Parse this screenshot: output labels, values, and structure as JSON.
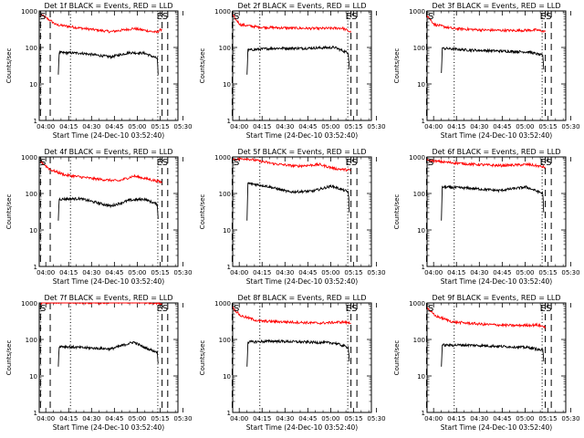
{
  "chart_data": [
    {
      "type": "line",
      "title": "Det 1f BLACK = Events, RED = LLD",
      "xlabel": "Start Time (24-Dec-10 03:52:40)",
      "ylabel": "Counts/sec",
      "yscale": "log",
      "ylim": [
        1,
        1000
      ],
      "y_ticks": [
        "1",
        "10",
        "100",
        "1000"
      ],
      "x_ticks": [
        "04:00",
        "04:15",
        "04:30",
        "04:45",
        "05:00",
        "05:15",
        "05:30"
      ],
      "xlim_minutes": [
        3.0,
        94.0
      ],
      "markers": [
        {
          "label": "E",
          "minute": 83.6
        },
        {
          "label": "S",
          "minute": 87.3
        }
      ],
      "dashed_lines": [
        3.8,
        10.2,
        83.6,
        87.3
      ],
      "dotted_lines": [
        23.5,
        80.8
      ],
      "series": [
        {
          "color": "#ff0000",
          "values": [
            {
              "t": 4.0,
              "v": 800
            },
            {
              "t": 10.2,
              "v": 550
            },
            {
              "t": 14,
              "v": 420
            },
            {
              "t": 30,
              "v": 340
            },
            {
              "t": 50,
              "v": 270
            },
            {
              "t": 65,
              "v": 330
            },
            {
              "t": 80,
              "v": 260
            },
            {
              "t": 83.6,
              "v": 320
            }
          ]
        },
        {
          "color": "#000000",
          "values": [
            {
              "t": 15.5,
              "v": 18
            },
            {
              "t": 16,
              "v": 72
            },
            {
              "t": 30,
              "v": 70
            },
            {
              "t": 50,
              "v": 55
            },
            {
              "t": 62,
              "v": 72
            },
            {
              "t": 72,
              "v": 70
            },
            {
              "t": 80.5,
              "v": 50
            },
            {
              "t": 81,
              "v": 18
            }
          ]
        }
      ]
    },
    {
      "type": "line",
      "title": "Det 2f BLACK = Events, RED = LLD",
      "xlabel": "Start Time (24-Dec-10 03:52:40)",
      "ylabel": "Counts/sec",
      "yscale": "log",
      "ylim": [
        1,
        1000
      ],
      "y_ticks": [
        "1",
        "10",
        "100",
        "1000"
      ],
      "x_ticks": [
        "04:00",
        "04:15",
        "04:30",
        "04:45",
        "05:00",
        "05:15",
        "05:30"
      ],
      "xlim_minutes": [
        3.0,
        94.0
      ],
      "markers": [
        {
          "label": "E",
          "minute": 80.6
        },
        {
          "label": "S",
          "minute": 84.5
        }
      ],
      "dashed_lines": [
        2.7,
        80.6,
        84.5
      ],
      "dotted_lines": [
        20.8,
        78.5
      ],
      "series": [
        {
          "color": "#ff0000",
          "values": [
            {
              "t": 3,
              "v": 750
            },
            {
              "t": 8,
              "v": 420
            },
            {
              "t": 20,
              "v": 360
            },
            {
              "t": 40,
              "v": 340
            },
            {
              "t": 60,
              "v": 330
            },
            {
              "t": 75,
              "v": 340
            },
            {
              "t": 80.6,
              "v": 260
            }
          ]
        },
        {
          "color": "#000000",
          "values": [
            {
              "t": 12.4,
              "v": 18
            },
            {
              "t": 13,
              "v": 85
            },
            {
              "t": 30,
              "v": 95
            },
            {
              "t": 50,
              "v": 95
            },
            {
              "t": 70,
              "v": 100
            },
            {
              "t": 79,
              "v": 70
            },
            {
              "t": 79.5,
              "v": 25
            }
          ]
        }
      ]
    },
    {
      "type": "line",
      "title": "Det 3f BLACK = Events, RED = LLD",
      "xlabel": "Start Time (24-Dec-10 03:52:40)",
      "ylabel": "Counts/sec",
      "yscale": "log",
      "ylim": [
        1,
        1000
      ],
      "y_ticks": [
        "1",
        "10",
        "100",
        "1000"
      ],
      "x_ticks": [
        "04:00",
        "04:15",
        "04:30",
        "04:45",
        "05:00",
        "05:15",
        "05:30"
      ],
      "xlim_minutes": [
        3.0,
        94.0
      ],
      "markers": [
        {
          "label": "E",
          "minute": 80.6
        },
        {
          "label": "S",
          "minute": 84.5
        }
      ],
      "dashed_lines": [
        2.7,
        80.6,
        84.5
      ],
      "dotted_lines": [
        20.8,
        78.5
      ],
      "series": [
        {
          "color": "#ff0000",
          "values": [
            {
              "t": 3,
              "v": 750
            },
            {
              "t": 8,
              "v": 420
            },
            {
              "t": 20,
              "v": 330
            },
            {
              "t": 40,
              "v": 300
            },
            {
              "t": 60,
              "v": 290
            },
            {
              "t": 75,
              "v": 300
            },
            {
              "t": 80.6,
              "v": 270
            }
          ]
        },
        {
          "color": "#000000",
          "values": [
            {
              "t": 12.4,
              "v": 20
            },
            {
              "t": 13,
              "v": 95
            },
            {
              "t": 30,
              "v": 85
            },
            {
              "t": 50,
              "v": 80
            },
            {
              "t": 70,
              "v": 75
            },
            {
              "t": 79,
              "v": 60
            },
            {
              "t": 79.5,
              "v": 25
            }
          ]
        }
      ]
    },
    {
      "type": "line",
      "title": "Det 4f BLACK = Events, RED = LLD",
      "xlabel": "Start Time (24-Dec-10 03:52:40)",
      "ylabel": "Counts/sec",
      "yscale": "log",
      "ylim": [
        1,
        1000
      ],
      "y_ticks": [
        "1",
        "10",
        "100",
        "1000"
      ],
      "x_ticks": [
        "04:00",
        "04:15",
        "04:30",
        "04:45",
        "05:00",
        "05:15",
        "05:30"
      ],
      "xlim_minutes": [
        3.0,
        94.0
      ],
      "markers": [
        {
          "label": "E",
          "minute": 83.6
        },
        {
          "label": "S",
          "minute": 87.3
        }
      ],
      "dashed_lines": [
        3.8,
        10.2,
        83.6,
        87.3
      ],
      "dotted_lines": [
        23.5,
        80.8
      ],
      "series": [
        {
          "color": "#ff0000",
          "values": [
            {
              "t": 4,
              "v": 750
            },
            {
              "t": 10.2,
              "v": 450
            },
            {
              "t": 20,
              "v": 320
            },
            {
              "t": 40,
              "v": 250
            },
            {
              "t": 55,
              "v": 220
            },
            {
              "t": 65,
              "v": 300
            },
            {
              "t": 80,
              "v": 220
            },
            {
              "t": 83.6,
              "v": 200
            }
          ]
        },
        {
          "color": "#000000",
          "values": [
            {
              "t": 15.5,
              "v": 18
            },
            {
              "t": 16,
              "v": 70
            },
            {
              "t": 30,
              "v": 72
            },
            {
              "t": 50,
              "v": 45
            },
            {
              "t": 62,
              "v": 65
            },
            {
              "t": 72,
              "v": 70
            },
            {
              "t": 80.5,
              "v": 50
            },
            {
              "t": 81,
              "v": 20
            }
          ]
        }
      ]
    },
    {
      "type": "line",
      "title": "Det 5f BLACK = Events, RED = LLD",
      "xlabel": "Start Time (24-Dec-10 03:52:40)",
      "ylabel": "Counts/sec",
      "yscale": "log",
      "ylim": [
        1,
        1000
      ],
      "y_ticks": [
        "1",
        "10",
        "100",
        "1000"
      ],
      "x_ticks": [
        "04:00",
        "04:15",
        "04:30",
        "04:45",
        "05:00",
        "05:15",
        "05:30"
      ],
      "xlim_minutes": [
        3.0,
        94.0
      ],
      "markers": [
        {
          "label": "E",
          "minute": 80.6
        },
        {
          "label": "S",
          "minute": 84.5
        }
      ],
      "dashed_lines": [
        2.7,
        80.6,
        84.5
      ],
      "dotted_lines": [
        20.8,
        78.5
      ],
      "series": [
        {
          "color": "#ff0000",
          "values": [
            {
              "t": 3,
              "v": 850
            },
            {
              "t": 12,
              "v": 900
            },
            {
              "t": 30,
              "v": 650
            },
            {
              "t": 45,
              "v": 560
            },
            {
              "t": 60,
              "v": 620
            },
            {
              "t": 70,
              "v": 480
            },
            {
              "t": 80.6,
              "v": 430
            }
          ]
        },
        {
          "color": "#000000",
          "values": [
            {
              "t": 12.4,
              "v": 18
            },
            {
              "t": 13,
              "v": 190
            },
            {
              "t": 25,
              "v": 160
            },
            {
              "t": 40,
              "v": 110
            },
            {
              "t": 55,
              "v": 115
            },
            {
              "t": 68,
              "v": 160
            },
            {
              "t": 79,
              "v": 110
            },
            {
              "t": 79.5,
              "v": 30
            }
          ]
        }
      ]
    },
    {
      "type": "line",
      "title": "Det 6f BLACK = Events, RED = LLD",
      "xlabel": "Start Time (24-Dec-10 03:52:40)",
      "ylabel": "Counts/sec",
      "yscale": "log",
      "ylim": [
        1,
        1000
      ],
      "y_ticks": [
        "1",
        "10",
        "100",
        "1000"
      ],
      "x_ticks": [
        "04:00",
        "04:15",
        "04:30",
        "04:45",
        "05:00",
        "05:15",
        "05:30"
      ],
      "xlim_minutes": [
        3.0,
        94.0
      ],
      "markers": [
        {
          "label": "E",
          "minute": 80.6
        },
        {
          "label": "S",
          "minute": 84.5
        }
      ],
      "dashed_lines": [
        2.7,
        80.6,
        84.5
      ],
      "dotted_lines": [
        20.8,
        78.5
      ],
      "series": [
        {
          "color": "#ff0000",
          "values": [
            {
              "t": 3,
              "v": 800
            },
            {
              "t": 15,
              "v": 720
            },
            {
              "t": 30,
              "v": 640
            },
            {
              "t": 50,
              "v": 580
            },
            {
              "t": 70,
              "v": 620
            },
            {
              "t": 80.6,
              "v": 520
            }
          ]
        },
        {
          "color": "#000000",
          "values": [
            {
              "t": 12.4,
              "v": 18
            },
            {
              "t": 13,
              "v": 150
            },
            {
              "t": 30,
              "v": 140
            },
            {
              "t": 50,
              "v": 120
            },
            {
              "t": 68,
              "v": 150
            },
            {
              "t": 79,
              "v": 100
            },
            {
              "t": 79.5,
              "v": 30
            }
          ]
        }
      ]
    },
    {
      "type": "line",
      "title": "Det 7f BLACK = Events, RED = LLD",
      "xlabel": "Start Time (24-Dec-10 03:52:40)",
      "ylabel": "Counts/sec",
      "yscale": "log",
      "ylim": [
        1,
        1000
      ],
      "y_ticks": [
        "1",
        "10",
        "100",
        "1000"
      ],
      "x_ticks": [
        "04:00",
        "04:15",
        "04:30",
        "04:45",
        "05:00",
        "05:15",
        "05:30"
      ],
      "xlim_minutes": [
        3.0,
        94.0
      ],
      "markers": [
        {
          "label": "E",
          "minute": 83.6
        },
        {
          "label": "S",
          "minute": 87.3
        }
      ],
      "dashed_lines": [
        3.8,
        10.2,
        83.6,
        87.3
      ],
      "dotted_lines": [
        23.5,
        80.8
      ],
      "series": [
        {
          "color": "#ff0000",
          "values": [
            {
              "t": 4,
              "v": 1000
            },
            {
              "t": 20,
              "v": 1050
            },
            {
              "t": 40,
              "v": 1000
            },
            {
              "t": 60,
              "v": 1050
            },
            {
              "t": 80,
              "v": 1000
            },
            {
              "t": 83.6,
              "v": 950
            }
          ]
        },
        {
          "color": "#000000",
          "values": [
            {
              "t": 15.5,
              "v": 18
            },
            {
              "t": 16,
              "v": 65
            },
            {
              "t": 30,
              "v": 60
            },
            {
              "t": 50,
              "v": 55
            },
            {
              "t": 65,
              "v": 85
            },
            {
              "t": 72,
              "v": 60
            },
            {
              "t": 80.5,
              "v": 45
            },
            {
              "t": 81,
              "v": 22
            }
          ]
        }
      ]
    },
    {
      "type": "line",
      "title": "Det 8f BLACK = Events, RED = LLD",
      "xlabel": "Start Time (24-Dec-10 03:52:40)",
      "ylabel": "Counts/sec",
      "yscale": "log",
      "ylim": [
        1,
        1000
      ],
      "y_ticks": [
        "1",
        "10",
        "100",
        "1000"
      ],
      "x_ticks": [
        "04:00",
        "04:15",
        "04:30",
        "04:45",
        "05:00",
        "05:15",
        "05:30"
      ],
      "xlim_minutes": [
        3.0,
        94.0
      ],
      "markers": [
        {
          "label": "E",
          "minute": 80.6
        },
        {
          "label": "S",
          "minute": 84.5
        }
      ],
      "dashed_lines": [
        2.7,
        80.6,
        84.5
      ],
      "dotted_lines": [
        20.8,
        78.5
      ],
      "series": [
        {
          "color": "#ff0000",
          "values": [
            {
              "t": 3,
              "v": 750
            },
            {
              "t": 8,
              "v": 450
            },
            {
              "t": 20,
              "v": 320
            },
            {
              "t": 40,
              "v": 300
            },
            {
              "t": 60,
              "v": 280
            },
            {
              "t": 75,
              "v": 300
            },
            {
              "t": 80.6,
              "v": 280
            }
          ]
        },
        {
          "color": "#000000",
          "values": [
            {
              "t": 12.4,
              "v": 18
            },
            {
              "t": 13,
              "v": 85
            },
            {
              "t": 30,
              "v": 90
            },
            {
              "t": 50,
              "v": 85
            },
            {
              "t": 70,
              "v": 80
            },
            {
              "t": 79,
              "v": 60
            },
            {
              "t": 79.5,
              "v": 25
            }
          ]
        }
      ]
    },
    {
      "type": "line",
      "title": "Det 9f BLACK = Events, RED = LLD",
      "xlabel": "Start Time (24-Dec-10 03:52:40)",
      "ylabel": "Counts/sec",
      "yscale": "log",
      "ylim": [
        1,
        1000
      ],
      "y_ticks": [
        "1",
        "10",
        "100",
        "1000"
      ],
      "x_ticks": [
        "04:00",
        "04:15",
        "04:30",
        "04:45",
        "05:00",
        "05:15",
        "05:30"
      ],
      "xlim_minutes": [
        3.0,
        94.0
      ],
      "markers": [
        {
          "label": "E",
          "minute": 80.6
        },
        {
          "label": "S",
          "minute": 84.5
        }
      ],
      "dashed_lines": [
        2.7,
        80.6,
        84.5
      ],
      "dotted_lines": [
        20.8,
        78.5
      ],
      "series": [
        {
          "color": "#ff0000",
          "values": [
            {
              "t": 3,
              "v": 750
            },
            {
              "t": 8,
              "v": 450
            },
            {
              "t": 20,
              "v": 300
            },
            {
              "t": 40,
              "v": 260
            },
            {
              "t": 60,
              "v": 240
            },
            {
              "t": 75,
              "v": 250
            },
            {
              "t": 80.6,
              "v": 220
            }
          ]
        },
        {
          "color": "#000000",
          "values": [
            {
              "t": 12.4,
              "v": 18
            },
            {
              "t": 13,
              "v": 70
            },
            {
              "t": 30,
              "v": 70
            },
            {
              "t": 50,
              "v": 65
            },
            {
              "t": 70,
              "v": 60
            },
            {
              "t": 79,
              "v": 50
            },
            {
              "t": 79.5,
              "v": 25
            }
          ]
        }
      ]
    }
  ]
}
